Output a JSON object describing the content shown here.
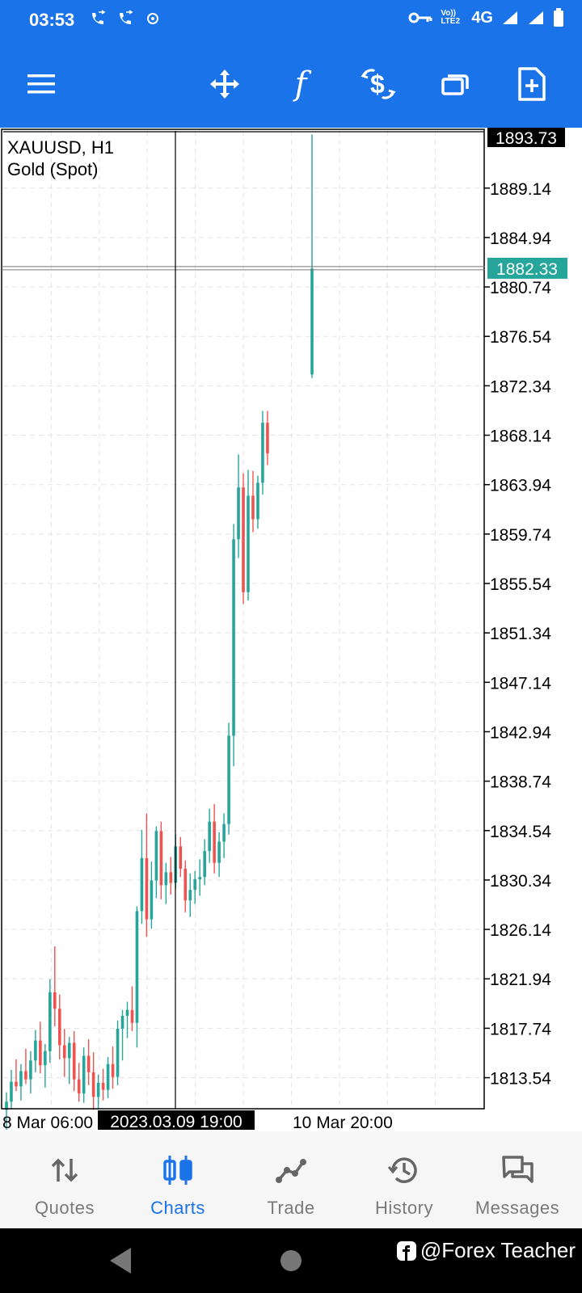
{
  "status_bar": {
    "time": "03:53",
    "network": "4G",
    "volte": "Vo)) LTE2"
  },
  "toolbar": {
    "items": [
      {
        "name": "menu"
      },
      {
        "name": "crosshair-move"
      },
      {
        "name": "indicators"
      },
      {
        "name": "trade-dollar"
      },
      {
        "name": "windows"
      },
      {
        "name": "new-order"
      }
    ],
    "function_glyph": "f"
  },
  "chart": {
    "symbol_line": "XAUUSD, H1",
    "description": "Gold (Spot)",
    "top_price_label": "1893.73",
    "current_price_label": "1882.33",
    "price_levels": [
      "1889.14",
      "1884.94",
      "1880.74",
      "1876.54",
      "1872.34",
      "1868.14",
      "1863.94",
      "1859.74",
      "1855.54",
      "1851.34",
      "1847.14",
      "1842.94",
      "1838.74",
      "1834.54",
      "1830.34",
      "1826.14",
      "1821.94",
      "1817.74",
      "1813.54"
    ],
    "time_labels": {
      "left": "8 Mar 06:00",
      "crosshair": "2023.03.09 19:00",
      "right": "10 Mar 20:00"
    },
    "colors": {
      "bull": "#26a69a",
      "bear": "#ef5350",
      "current_price_bg": "#26a69a",
      "top_label_bg": "#000000"
    }
  },
  "chart_data": {
    "type": "candlestick",
    "symbol": "XAUUSD",
    "timeframe": "H1",
    "ylim": [
      1810.9,
      1894.0
    ],
    "y_ticks": [
      1889.14,
      1884.94,
      1880.74,
      1876.54,
      1872.34,
      1868.14,
      1863.94,
      1859.74,
      1855.54,
      1851.34,
      1847.14,
      1842.94,
      1838.74,
      1834.54,
      1830.34,
      1826.14,
      1821.94,
      1817.74,
      1813.54
    ],
    "x_tick_labels": [
      "8 Mar 06:00",
      "10 Mar 20:00"
    ],
    "crosshair_time": "2023.03.09 19:00",
    "current_price": 1882.33,
    "candles": [
      {
        "o": 1810.8,
        "h": 1812.3,
        "l": 1808.7,
        "c": 1811.5
      },
      {
        "o": 1811.5,
        "h": 1814.2,
        "l": 1810.9,
        "c": 1813.2
      },
      {
        "o": 1813.2,
        "h": 1815.1,
        "l": 1812.4,
        "c": 1812.8
      },
      {
        "o": 1812.8,
        "h": 1814.7,
        "l": 1811.6,
        "c": 1814.1
      },
      {
        "o": 1814.1,
        "h": 1816.0,
        "l": 1813.0,
        "c": 1813.4
      },
      {
        "o": 1813.4,
        "h": 1815.8,
        "l": 1812.2,
        "c": 1815.0
      },
      {
        "o": 1815.0,
        "h": 1817.6,
        "l": 1814.0,
        "c": 1816.7
      },
      {
        "o": 1816.7,
        "h": 1818.3,
        "l": 1813.9,
        "c": 1814.6
      },
      {
        "o": 1814.6,
        "h": 1816.4,
        "l": 1812.7,
        "c": 1815.8
      },
      {
        "o": 1815.8,
        "h": 1821.9,
        "l": 1814.8,
        "c": 1820.8
      },
      {
        "o": 1820.8,
        "h": 1824.7,
        "l": 1817.9,
        "c": 1819.4
      },
      {
        "o": 1819.4,
        "h": 1820.6,
        "l": 1815.1,
        "c": 1816.3
      },
      {
        "o": 1816.3,
        "h": 1817.7,
        "l": 1813.6,
        "c": 1815.2
      },
      {
        "o": 1815.2,
        "h": 1817.0,
        "l": 1813.0,
        "c": 1816.5
      },
      {
        "o": 1816.5,
        "h": 1817.5,
        "l": 1812.4,
        "c": 1813.4
      },
      {
        "o": 1813.4,
        "h": 1814.8,
        "l": 1811.5,
        "c": 1812.2
      },
      {
        "o": 1812.2,
        "h": 1816.1,
        "l": 1811.4,
        "c": 1815.4
      },
      {
        "o": 1815.4,
        "h": 1816.8,
        "l": 1812.9,
        "c": 1814.0
      },
      {
        "o": 1814.0,
        "h": 1815.7,
        "l": 1810.8,
        "c": 1811.9
      },
      {
        "o": 1811.9,
        "h": 1813.8,
        "l": 1810.9,
        "c": 1813.1
      },
      {
        "o": 1813.1,
        "h": 1814.3,
        "l": 1811.6,
        "c": 1812.5
      },
      {
        "o": 1812.5,
        "h": 1815.3,
        "l": 1811.8,
        "c": 1814.7
      },
      {
        "o": 1814.7,
        "h": 1816.2,
        "l": 1812.6,
        "c": 1813.6
      },
      {
        "o": 1813.6,
        "h": 1818.4,
        "l": 1812.9,
        "c": 1817.7
      },
      {
        "o": 1817.7,
        "h": 1819.3,
        "l": 1815.0,
        "c": 1818.8
      },
      {
        "o": 1818.8,
        "h": 1820.0,
        "l": 1816.9,
        "c": 1819.3
      },
      {
        "o": 1819.3,
        "h": 1821.3,
        "l": 1817.5,
        "c": 1818.2
      },
      {
        "o": 1818.2,
        "h": 1828.1,
        "l": 1816.1,
        "c": 1827.7
      },
      {
        "o": 1827.7,
        "h": 1834.6,
        "l": 1826.6,
        "c": 1832.2
      },
      {
        "o": 1832.2,
        "h": 1836.0,
        "l": 1825.5,
        "c": 1827.0
      },
      {
        "o": 1827.0,
        "h": 1831.9,
        "l": 1826.2,
        "c": 1830.3
      },
      {
        "o": 1830.3,
        "h": 1834.9,
        "l": 1828.8,
        "c": 1834.5
      },
      {
        "o": 1834.5,
        "h": 1835.3,
        "l": 1828.7,
        "c": 1829.9
      },
      {
        "o": 1829.9,
        "h": 1831.8,
        "l": 1828.3,
        "c": 1831.0
      },
      {
        "o": 1831.0,
        "h": 1832.3,
        "l": 1829.1,
        "c": 1830.1
      },
      {
        "o": 1830.1,
        "h": 1834.2,
        "l": 1829.6,
        "c": 1833.2
      },
      {
        "o": 1833.2,
        "h": 1834.0,
        "l": 1830.6,
        "c": 1831.3
      },
      {
        "o": 1831.3,
        "h": 1832.0,
        "l": 1827.6,
        "c": 1828.6
      },
      {
        "o": 1828.6,
        "h": 1830.9,
        "l": 1827.2,
        "c": 1829.5
      },
      {
        "o": 1829.5,
        "h": 1831.1,
        "l": 1828.3,
        "c": 1830.4
      },
      {
        "o": 1830.4,
        "h": 1832.1,
        "l": 1829.0,
        "c": 1830.6
      },
      {
        "o": 1830.6,
        "h": 1833.8,
        "l": 1829.9,
        "c": 1832.8
      },
      {
        "o": 1832.8,
        "h": 1836.4,
        "l": 1831.8,
        "c": 1835.3
      },
      {
        "o": 1835.3,
        "h": 1836.8,
        "l": 1830.9,
        "c": 1831.8
      },
      {
        "o": 1831.8,
        "h": 1834.4,
        "l": 1830.6,
        "c": 1833.6
      },
      {
        "o": 1833.6,
        "h": 1836.0,
        "l": 1832.2,
        "c": 1835.1
      },
      {
        "o": 1835.1,
        "h": 1843.7,
        "l": 1834.2,
        "c": 1842.6
      },
      {
        "o": 1842.6,
        "h": 1860.6,
        "l": 1840.0,
        "c": 1859.3
      },
      {
        "o": 1859.3,
        "h": 1866.5,
        "l": 1857.7,
        "c": 1863.7
      },
      {
        "o": 1863.7,
        "h": 1864.9,
        "l": 1853.8,
        "c": 1854.8
      },
      {
        "o": 1854.8,
        "h": 1865.2,
        "l": 1854.1,
        "c": 1863.0
      },
      {
        "o": 1863.0,
        "h": 1865.1,
        "l": 1859.9,
        "c": 1861.0
      },
      {
        "o": 1861.0,
        "h": 1864.7,
        "l": 1860.2,
        "c": 1864.1
      },
      {
        "o": 1864.1,
        "h": 1870.2,
        "l": 1863.1,
        "c": 1869.2
      },
      {
        "o": 1869.2,
        "h": 1870.2,
        "l": 1865.6,
        "c": 1866.6
      },
      {
        "o": 1873.3,
        "h": 1893.7,
        "l": 1873.0,
        "c": 1882.3
      }
    ]
  },
  "bottom_nav": {
    "items": [
      {
        "label": "Quotes"
      },
      {
        "label": "Charts"
      },
      {
        "label": "Trade"
      },
      {
        "label": "History"
      },
      {
        "label": "Messages"
      }
    ]
  },
  "watermark": "@Forex Teacher"
}
